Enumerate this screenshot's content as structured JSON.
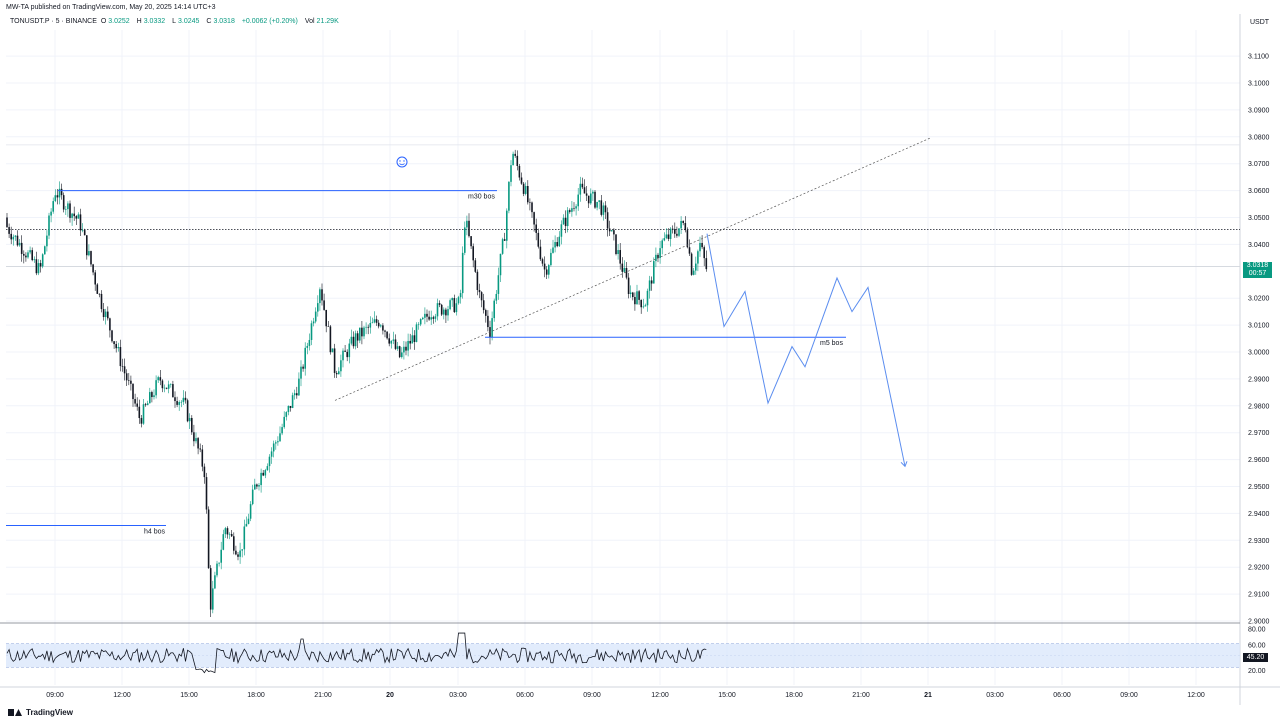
{
  "header": {
    "publisher": "MW-TA published on TradingView.com, May 20, 2025 14:14 UTC+3",
    "symbol": "TONUSDT.P · 5 · BINANCE",
    "open_label": "O",
    "open": "3.0252",
    "high_label": "H",
    "high": "3.0332",
    "low_label": "L",
    "low": "3.0245",
    "close_label": "C",
    "close": "3.0318",
    "change": "+0.0062 (+0.20%)",
    "vol_label": "Vol",
    "vol": "21.29K"
  },
  "axis": {
    "currency": "USDT",
    "last_price": "3.0318",
    "countdown": "00:57",
    "rsi_value": "45.20"
  },
  "footer": {
    "brand": "TradingView"
  },
  "colors": {
    "up": "#089981",
    "down": "#131722",
    "drawing": "#2962ff",
    "projection": "#5b8def",
    "rsi_band": "#dbe7fb",
    "grid": "#f0f3fa"
  },
  "chart_data": {
    "type": "candlestick",
    "price_range": [
      2.89,
      3.125
    ],
    "price_ticks": [
      "3.1100",
      "3.1000",
      "3.0900",
      "3.0800",
      "3.0700",
      "3.0600",
      "3.0500",
      "3.0400",
      "3.0200",
      "3.0100",
      "3.0000",
      "2.9900",
      "2.9800",
      "2.9700",
      "2.9600",
      "2.9500",
      "2.9400",
      "2.9300",
      "2.9200",
      "2.9100",
      "2.9000"
    ],
    "time_labels": [
      "09:00",
      "12:00",
      "15:00",
      "18:00",
      "21:00",
      "20",
      "03:00",
      "06:00",
      "09:00",
      "12:00",
      "15:00",
      "18:00",
      "21:00",
      "21",
      "03:00",
      "06:00",
      "09:00",
      "12:00"
    ],
    "rsi_ticks": [
      "80.00",
      "60.00",
      "20.00"
    ],
    "rsi_range": [
      0,
      100
    ],
    "rsi_band": [
      30,
      70
    ],
    "price_path_points": [
      [
        0,
        3.05
      ],
      [
        40,
        3.03
      ],
      [
        55,
        3.06
      ],
      [
        80,
        3.048
      ],
      [
        100,
        3.02
      ],
      [
        140,
        2.975
      ],
      [
        160,
        2.99
      ],
      [
        185,
        2.98
      ],
      [
        205,
        2.955
      ],
      [
        210,
        2.905
      ],
      [
        225,
        2.935
      ],
      [
        240,
        2.925
      ],
      [
        255,
        2.95
      ],
      [
        280,
        2.97
      ],
      [
        300,
        2.99
      ],
      [
        320,
        3.025
      ],
      [
        335,
        2.993
      ],
      [
        355,
        3.005
      ],
      [
        380,
        3.012
      ],
      [
        400,
        2.998
      ],
      [
        430,
        3.015
      ],
      [
        460,
        3.018
      ],
      [
        465,
        3.05
      ],
      [
        480,
        3.02
      ],
      [
        490,
        3.008
      ],
      [
        505,
        3.045
      ],
      [
        512,
        3.075
      ],
      [
        525,
        3.06
      ],
      [
        545,
        3.03
      ],
      [
        560,
        3.045
      ],
      [
        580,
        3.06
      ],
      [
        600,
        3.055
      ],
      [
        615,
        3.04
      ],
      [
        630,
        3.022
      ],
      [
        645,
        3.018
      ],
      [
        660,
        3.04
      ],
      [
        685,
        3.048
      ],
      [
        692,
        3.03
      ],
      [
        700,
        3.04
      ],
      [
        707,
        3.03
      ]
    ],
    "annotations": [
      {
        "label": "m30 bos",
        "price": 3.06
      },
      {
        "label": "m5 bos",
        "price": 3.0055
      },
      {
        "label": "h4 bos",
        "price": 2.9355
      }
    ],
    "horizontal_levels": [
      3.0455,
      3.0318,
      3.077
    ],
    "projection_path": [
      [
        707,
        3.044
      ],
      [
        724,
        3.0095
      ],
      [
        745,
        3.0225
      ],
      [
        768,
        2.981
      ],
      [
        792,
        3.002
      ],
      [
        805,
        2.9945
      ],
      [
        837,
        3.0275
      ],
      [
        852,
        3.015
      ],
      [
        868,
        3.024
      ],
      [
        905,
        2.9575
      ]
    ]
  }
}
